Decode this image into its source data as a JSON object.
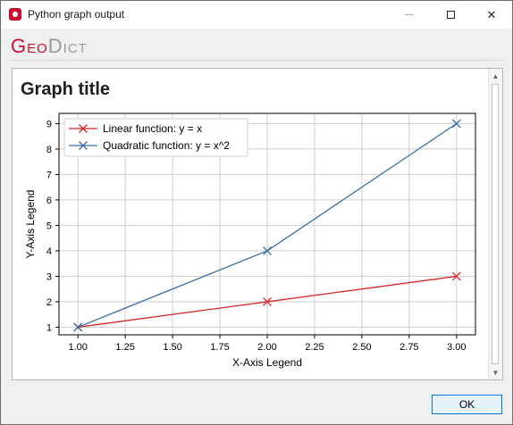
{
  "window": {
    "title": "Python graph output"
  },
  "logo": {
    "part1": "Geo",
    "part2": "Dict"
  },
  "graph": {
    "title": "Graph title"
  },
  "buttons": {
    "ok": "OK"
  },
  "chart_data": {
    "type": "line",
    "xlabel": "X-Axis Legend",
    "ylabel": "Y-Axis Legend",
    "xlim": [
      0.9,
      3.1
    ],
    "ylim": [
      0.7,
      9.4
    ],
    "xticks": [
      "1.00",
      "1.25",
      "1.50",
      "1.75",
      "2.00",
      "2.25",
      "2.50",
      "2.75",
      "3.00"
    ],
    "yticks": [
      "1",
      "2",
      "3",
      "4",
      "5",
      "6",
      "7",
      "8",
      "9"
    ],
    "grid": true,
    "legend_position": "top-left",
    "x": [
      1,
      2,
      3
    ],
    "series": [
      {
        "name": "Linear function: y = x",
        "values": [
          1,
          2,
          3
        ],
        "color": "#d62728",
        "marker": "x"
      },
      {
        "name": "Quadratic function: y = x^2",
        "values": [
          1,
          4,
          9
        ],
        "color": "#3a6ea5",
        "marker": "x"
      }
    ]
  }
}
